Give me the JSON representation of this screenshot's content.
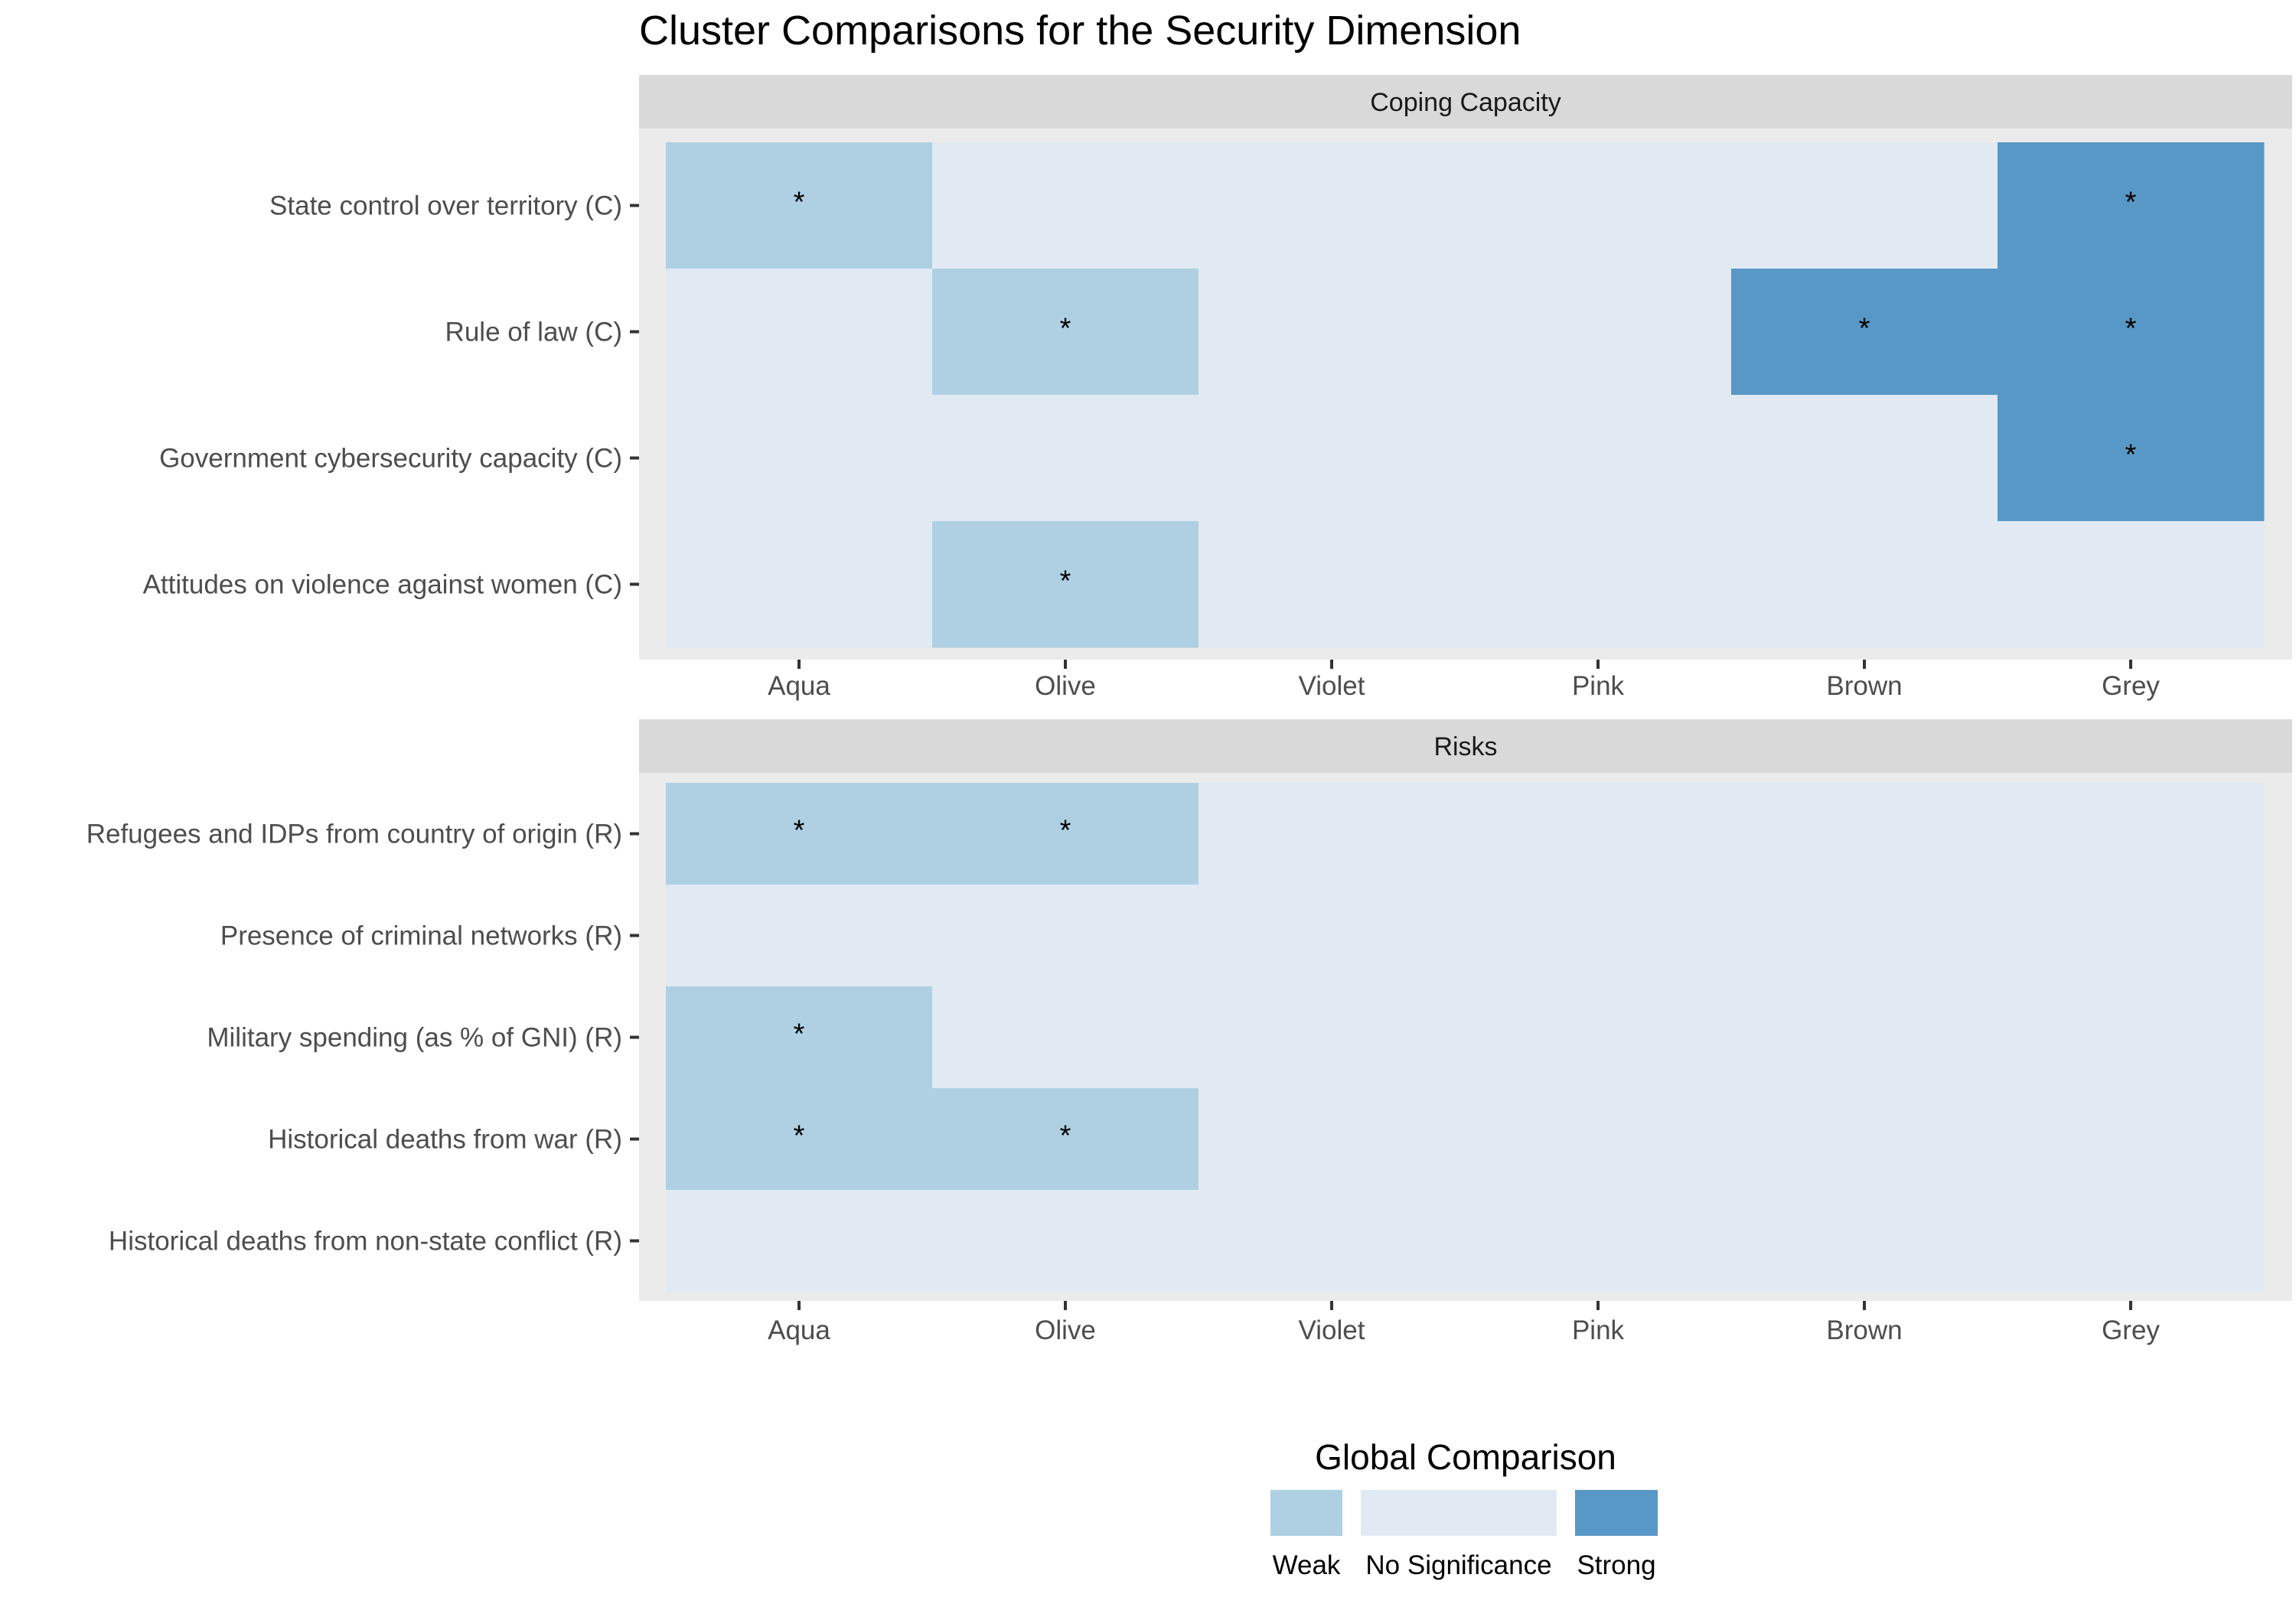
{
  "chart_data": {
    "type": "heatmap",
    "title": "Cluster Comparisons for the Security Dimension",
    "columns": [
      "Aqua",
      "Olive",
      "Violet",
      "Pink",
      "Brown",
      "Grey"
    ],
    "colors": {
      "Weak": "#aed0e2",
      "No Significance": "#e1eaf3",
      "Strong": "#5898c6",
      "panel_background": "#ebebeb",
      "strip_background": "#d9d9d9"
    },
    "panels": [
      {
        "name": "Coping Capacity",
        "rows": [
          {
            "label": "State control over territory (C)",
            "values": [
              "Weak",
              "No Significance",
              "No Significance",
              "No Significance",
              "No Significance",
              "Strong"
            ],
            "stars": [
              true,
              false,
              false,
              false,
              false,
              true
            ]
          },
          {
            "label": "Rule of law (C)",
            "values": [
              "No Significance",
              "Weak",
              "No Significance",
              "No Significance",
              "Strong",
              "Strong"
            ],
            "stars": [
              false,
              true,
              false,
              false,
              true,
              true
            ]
          },
          {
            "label": "Government cybersecurity capacity (C)",
            "values": [
              "No Significance",
              "No Significance",
              "No Significance",
              "No Significance",
              "No Significance",
              "Strong"
            ],
            "stars": [
              false,
              false,
              false,
              false,
              false,
              true
            ]
          },
          {
            "label": "Attitudes on violence against women (C)",
            "values": [
              "No Significance",
              "Weak",
              "No Significance",
              "No Significance",
              "No Significance",
              "No Significance"
            ],
            "stars": [
              false,
              true,
              false,
              false,
              false,
              false
            ]
          }
        ]
      },
      {
        "name": "Risks",
        "rows": [
          {
            "label": "Refugees and IDPs from country of origin (R)",
            "values": [
              "Weak",
              "Weak",
              "No Significance",
              "No Significance",
              "No Significance",
              "No Significance"
            ],
            "stars": [
              true,
              true,
              false,
              false,
              false,
              false
            ]
          },
          {
            "label": "Presence of criminal networks (R)",
            "values": [
              "No Significance",
              "No Significance",
              "No Significance",
              "No Significance",
              "No Significance",
              "No Significance"
            ],
            "stars": [
              false,
              false,
              false,
              false,
              false,
              false
            ]
          },
          {
            "label": "Military spending (as % of GNI) (R)",
            "values": [
              "Weak",
              "No Significance",
              "No Significance",
              "No Significance",
              "No Significance",
              "No Significance"
            ],
            "stars": [
              true,
              false,
              false,
              false,
              false,
              false
            ]
          },
          {
            "label": "Historical deaths from war (R)",
            "values": [
              "Weak",
              "Weak",
              "No Significance",
              "No Significance",
              "No Significance",
              "No Significance"
            ],
            "stars": [
              true,
              true,
              false,
              false,
              false,
              false
            ]
          },
          {
            "label": "Historical deaths from non-state conflict (R)",
            "values": [
              "No Significance",
              "No Significance",
              "No Significance",
              "No Significance",
              "No Significance",
              "No Significance"
            ],
            "stars": [
              false,
              false,
              false,
              false,
              false,
              false
            ]
          }
        ]
      }
    ],
    "star_symbol": "*",
    "legend": {
      "title": "Global Comparison",
      "position": "bottom",
      "items": [
        "Weak",
        "No Significance",
        "Strong"
      ]
    }
  }
}
